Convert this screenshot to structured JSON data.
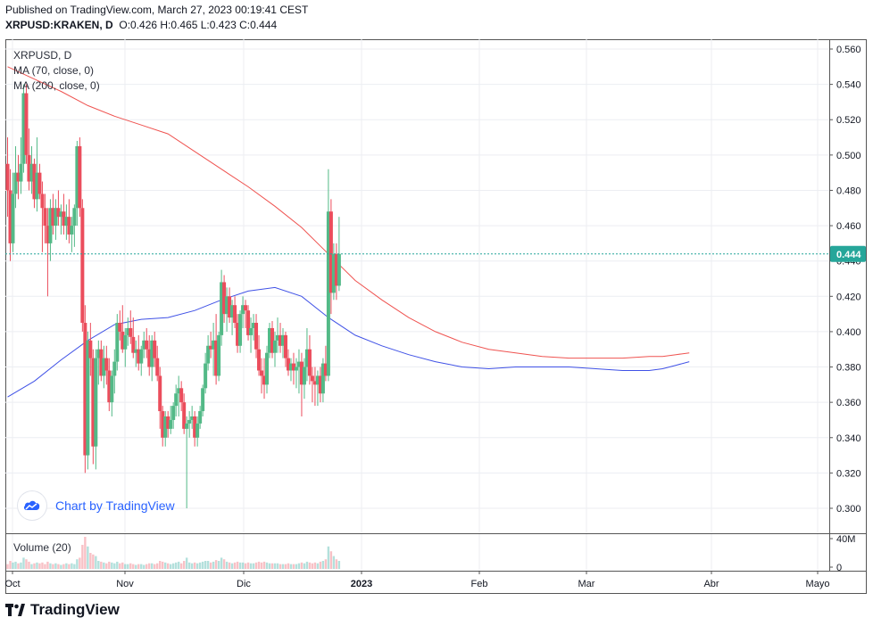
{
  "header": {
    "published": "Published on TradingView.com, March 27, 2023 00:19:41 CEST",
    "symbol": "XRPUSD:KRAKEN, D",
    "ohlc": "O:0.426 H:0.465 L:0.423 C:0.444"
  },
  "legend": {
    "symbol": "XRPUSD, D",
    "ma70": "MA (70, close, 0)",
    "ma200": "MA (200, close, 0)",
    "volume": "Volume (20)"
  },
  "chart_by": "Chart by TradingView",
  "brand": "TradingView",
  "colors": {
    "up": "#26a69a",
    "up_candle": "#53b987",
    "down": "#eb4d5c",
    "ma70": "#3f51e6",
    "ma200": "#ef5350",
    "price_tag": "#26a69a"
  },
  "chart_data": {
    "type": "candlestick",
    "title": "XRPUSD, D",
    "price_axis": {
      "min": 0.3,
      "max": 0.56,
      "ticks": [
        "0.560",
        "0.540",
        "0.520",
        "0.500",
        "0.480",
        "0.460",
        "0.440",
        "0.420",
        "0.400",
        "0.380",
        "0.360",
        "0.340",
        "0.320",
        "0.300"
      ]
    },
    "volume_axis": {
      "ticks": [
        "40M",
        "0"
      ]
    },
    "x_ticks": [
      "Oct",
      "Nov",
      "Dic",
      "2023",
      "Feb",
      "Mar",
      "Abr",
      "Mayo"
    ],
    "last_price": "0.444",
    "candles": [
      [
        0.495,
        0.51,
        0.465,
        0.48,
        6
      ],
      [
        0.48,
        0.492,
        0.44,
        0.45,
        10
      ],
      [
        0.45,
        0.49,
        0.445,
        0.478,
        8
      ],
      [
        0.478,
        0.505,
        0.47,
        0.49,
        9
      ],
      [
        0.49,
        0.5,
        0.475,
        0.485,
        7
      ],
      [
        0.485,
        0.51,
        0.478,
        0.495,
        8
      ],
      [
        0.495,
        0.54,
        0.49,
        0.535,
        14
      ],
      [
        0.535,
        0.54,
        0.495,
        0.5,
        12
      ],
      [
        0.5,
        0.515,
        0.48,
        0.485,
        9
      ],
      [
        0.485,
        0.505,
        0.478,
        0.495,
        6
      ],
      [
        0.495,
        0.498,
        0.47,
        0.475,
        7
      ],
      [
        0.475,
        0.51,
        0.468,
        0.49,
        8
      ],
      [
        0.49,
        0.495,
        0.475,
        0.478,
        7
      ],
      [
        0.478,
        0.485,
        0.445,
        0.47,
        8
      ],
      [
        0.47,
        0.478,
        0.45,
        0.46,
        6
      ],
      [
        0.46,
        0.47,
        0.42,
        0.45,
        9
      ],
      [
        0.45,
        0.475,
        0.44,
        0.47,
        7
      ],
      [
        0.47,
        0.478,
        0.455,
        0.46,
        6
      ],
      [
        0.46,
        0.475,
        0.452,
        0.47,
        7
      ],
      [
        0.47,
        0.48,
        0.46,
        0.465,
        6
      ],
      [
        0.465,
        0.472,
        0.455,
        0.468,
        5
      ],
      [
        0.468,
        0.478,
        0.455,
        0.46,
        6
      ],
      [
        0.46,
        0.472,
        0.452,
        0.465,
        7
      ],
      [
        0.465,
        0.475,
        0.45,
        0.455,
        6
      ],
      [
        0.455,
        0.465,
        0.445,
        0.46,
        7
      ],
      [
        0.46,
        0.472,
        0.448,
        0.47,
        6
      ],
      [
        0.47,
        0.508,
        0.46,
        0.505,
        12
      ],
      [
        0.505,
        0.51,
        0.465,
        0.47,
        14
      ],
      [
        0.47,
        0.475,
        0.4,
        0.405,
        30
      ],
      [
        0.405,
        0.415,
        0.32,
        0.33,
        40
      ],
      [
        0.33,
        0.4,
        0.322,
        0.395,
        28
      ],
      [
        0.395,
        0.405,
        0.375,
        0.385,
        20
      ],
      [
        0.385,
        0.39,
        0.325,
        0.335,
        18
      ],
      [
        0.335,
        0.39,
        0.322,
        0.385,
        16
      ],
      [
        0.385,
        0.395,
        0.37,
        0.39,
        10
      ],
      [
        0.39,
        0.395,
        0.372,
        0.375,
        9
      ],
      [
        0.375,
        0.392,
        0.368,
        0.385,
        8
      ],
      [
        0.385,
        0.392,
        0.37,
        0.378,
        7
      ],
      [
        0.378,
        0.385,
        0.355,
        0.36,
        9
      ],
      [
        0.36,
        0.378,
        0.352,
        0.375,
        8
      ],
      [
        0.375,
        0.39,
        0.365,
        0.383,
        7
      ],
      [
        0.383,
        0.41,
        0.378,
        0.405,
        9
      ],
      [
        0.405,
        0.412,
        0.395,
        0.4,
        7
      ],
      [
        0.4,
        0.415,
        0.388,
        0.39,
        8
      ],
      [
        0.39,
        0.402,
        0.38,
        0.398,
        6
      ],
      [
        0.398,
        0.408,
        0.392,
        0.402,
        6
      ],
      [
        0.402,
        0.412,
        0.393,
        0.397,
        7
      ],
      [
        0.397,
        0.408,
        0.385,
        0.388,
        6
      ],
      [
        0.388,
        0.395,
        0.38,
        0.39,
        5
      ],
      [
        0.39,
        0.398,
        0.378,
        0.382,
        6
      ],
      [
        0.382,
        0.392,
        0.375,
        0.39,
        6
      ],
      [
        0.39,
        0.4,
        0.385,
        0.395,
        5
      ],
      [
        0.395,
        0.402,
        0.385,
        0.39,
        6
      ],
      [
        0.39,
        0.398,
        0.375,
        0.38,
        7
      ],
      [
        0.38,
        0.398,
        0.372,
        0.395,
        7
      ],
      [
        0.395,
        0.4,
        0.38,
        0.385,
        6
      ],
      [
        0.385,
        0.392,
        0.372,
        0.375,
        7
      ],
      [
        0.375,
        0.38,
        0.345,
        0.355,
        10
      ],
      [
        0.355,
        0.358,
        0.335,
        0.34,
        9
      ],
      [
        0.34,
        0.355,
        0.335,
        0.352,
        8
      ],
      [
        0.352,
        0.355,
        0.34,
        0.345,
        7
      ],
      [
        0.345,
        0.358,
        0.342,
        0.35,
        6
      ],
      [
        0.35,
        0.36,
        0.345,
        0.358,
        7
      ],
      [
        0.358,
        0.37,
        0.352,
        0.365,
        8
      ],
      [
        0.365,
        0.375,
        0.352,
        0.368,
        9
      ],
      [
        0.368,
        0.372,
        0.355,
        0.36,
        7
      ],
      [
        0.36,
        0.365,
        0.342,
        0.345,
        10
      ],
      [
        0.345,
        0.352,
        0.3,
        0.348,
        14
      ],
      [
        0.348,
        0.355,
        0.34,
        0.35,
        8
      ],
      [
        0.35,
        0.358,
        0.345,
        0.352,
        7
      ],
      [
        0.352,
        0.355,
        0.335,
        0.34,
        8
      ],
      [
        0.34,
        0.352,
        0.335,
        0.348,
        7
      ],
      [
        0.348,
        0.358,
        0.345,
        0.355,
        8
      ],
      [
        0.355,
        0.37,
        0.352,
        0.368,
        9
      ],
      [
        0.368,
        0.388,
        0.365,
        0.382,
        10
      ],
      [
        0.382,
        0.398,
        0.378,
        0.392,
        10
      ],
      [
        0.392,
        0.4,
        0.385,
        0.39,
        8
      ],
      [
        0.39,
        0.405,
        0.375,
        0.395,
        9
      ],
      [
        0.395,
        0.41,
        0.37,
        0.375,
        11
      ],
      [
        0.375,
        0.4,
        0.372,
        0.398,
        10
      ],
      [
        0.398,
        0.435,
        0.392,
        0.428,
        14
      ],
      [
        0.428,
        0.432,
        0.405,
        0.41,
        12
      ],
      [
        0.41,
        0.425,
        0.4,
        0.42,
        9
      ],
      [
        0.42,
        0.425,
        0.405,
        0.408,
        8
      ],
      [
        0.408,
        0.418,
        0.398,
        0.415,
        7
      ],
      [
        0.415,
        0.42,
        0.402,
        0.405,
        8
      ],
      [
        0.405,
        0.41,
        0.388,
        0.392,
        9
      ],
      [
        0.392,
        0.412,
        0.388,
        0.41,
        8
      ],
      [
        0.41,
        0.42,
        0.402,
        0.415,
        8
      ],
      [
        0.415,
        0.418,
        0.402,
        0.412,
        7
      ],
      [
        0.412,
        0.415,
        0.395,
        0.398,
        8
      ],
      [
        0.398,
        0.408,
        0.388,
        0.402,
        7
      ],
      [
        0.402,
        0.41,
        0.395,
        0.405,
        7
      ],
      [
        0.405,
        0.41,
        0.385,
        0.39,
        8
      ],
      [
        0.39,
        0.398,
        0.375,
        0.378,
        9
      ],
      [
        0.378,
        0.385,
        0.365,
        0.375,
        8
      ],
      [
        0.375,
        0.385,
        0.362,
        0.37,
        9
      ],
      [
        0.37,
        0.392,
        0.365,
        0.388,
        8
      ],
      [
        0.388,
        0.405,
        0.385,
        0.402,
        7
      ],
      [
        0.402,
        0.406,
        0.385,
        0.388,
        7
      ],
      [
        0.388,
        0.4,
        0.38,
        0.395,
        7
      ],
      [
        0.395,
        0.408,
        0.388,
        0.398,
        7
      ],
      [
        0.398,
        0.405,
        0.388,
        0.392,
        6
      ],
      [
        0.392,
        0.402,
        0.385,
        0.398,
        6
      ],
      [
        0.398,
        0.4,
        0.38,
        0.385,
        6
      ],
      [
        0.385,
        0.39,
        0.375,
        0.378,
        7
      ],
      [
        0.378,
        0.385,
        0.372,
        0.382,
        6
      ],
      [
        0.382,
        0.388,
        0.37,
        0.378,
        6
      ],
      [
        0.378,
        0.385,
        0.368,
        0.38,
        6
      ],
      [
        0.38,
        0.39,
        0.365,
        0.383,
        7
      ],
      [
        0.383,
        0.388,
        0.352,
        0.37,
        8
      ],
      [
        0.37,
        0.385,
        0.362,
        0.38,
        7
      ],
      [
        0.38,
        0.402,
        0.372,
        0.39,
        9
      ],
      [
        0.39,
        0.398,
        0.37,
        0.375,
        8
      ],
      [
        0.375,
        0.38,
        0.36,
        0.372,
        7
      ],
      [
        0.372,
        0.38,
        0.358,
        0.37,
        8
      ],
      [
        0.37,
        0.378,
        0.358,
        0.375,
        7
      ],
      [
        0.375,
        0.38,
        0.36,
        0.365,
        9
      ],
      [
        0.365,
        0.385,
        0.36,
        0.382,
        10
      ],
      [
        0.382,
        0.392,
        0.372,
        0.375,
        12
      ],
      [
        0.375,
        0.492,
        0.372,
        0.468,
        28
      ],
      [
        0.468,
        0.475,
        0.41,
        0.422,
        22
      ],
      [
        0.422,
        0.45,
        0.418,
        0.444,
        16
      ],
      [
        0.444,
        0.45,
        0.418,
        0.426,
        12
      ],
      [
        0.426,
        0.465,
        0.423,
        0.444,
        10
      ]
    ],
    "ma70": [
      [
        0,
        0.363
      ],
      [
        10,
        0.372
      ],
      [
        20,
        0.384
      ],
      [
        30,
        0.395
      ],
      [
        40,
        0.404
      ],
      [
        50,
        0.407
      ],
      [
        60,
        0.408
      ],
      [
        70,
        0.412
      ],
      [
        80,
        0.418
      ],
      [
        90,
        0.423
      ],
      [
        100,
        0.425
      ],
      [
        110,
        0.42
      ],
      [
        120,
        0.408
      ],
      [
        130,
        0.398
      ],
      [
        140,
        0.392
      ],
      [
        150,
        0.387
      ],
      [
        160,
        0.383
      ],
      [
        170,
        0.38
      ],
      [
        180,
        0.379
      ],
      [
        190,
        0.38
      ],
      [
        200,
        0.38
      ],
      [
        210,
        0.38
      ],
      [
        220,
        0.379
      ],
      [
        230,
        0.378
      ],
      [
        240,
        0.378
      ],
      [
        245,
        0.379
      ],
      [
        250,
        0.381
      ],
      [
        255,
        0.383
      ]
    ],
    "ma200": [
      [
        0,
        0.55
      ],
      [
        10,
        0.543
      ],
      [
        20,
        0.536
      ],
      [
        30,
        0.528
      ],
      [
        40,
        0.522
      ],
      [
        50,
        0.517
      ],
      [
        60,
        0.512
      ],
      [
        70,
        0.502
      ],
      [
        80,
        0.492
      ],
      [
        90,
        0.482
      ],
      [
        100,
        0.471
      ],
      [
        110,
        0.459
      ],
      [
        120,
        0.444
      ],
      [
        130,
        0.429
      ],
      [
        140,
        0.418
      ],
      [
        150,
        0.408
      ],
      [
        160,
        0.4
      ],
      [
        170,
        0.394
      ],
      [
        180,
        0.39
      ],
      [
        190,
        0.388
      ],
      [
        200,
        0.386
      ],
      [
        210,
        0.385
      ],
      [
        220,
        0.385
      ],
      [
        230,
        0.385
      ],
      [
        240,
        0.386
      ],
      [
        245,
        0.386
      ],
      [
        250,
        0.387
      ],
      [
        255,
        0.388
      ]
    ]
  }
}
